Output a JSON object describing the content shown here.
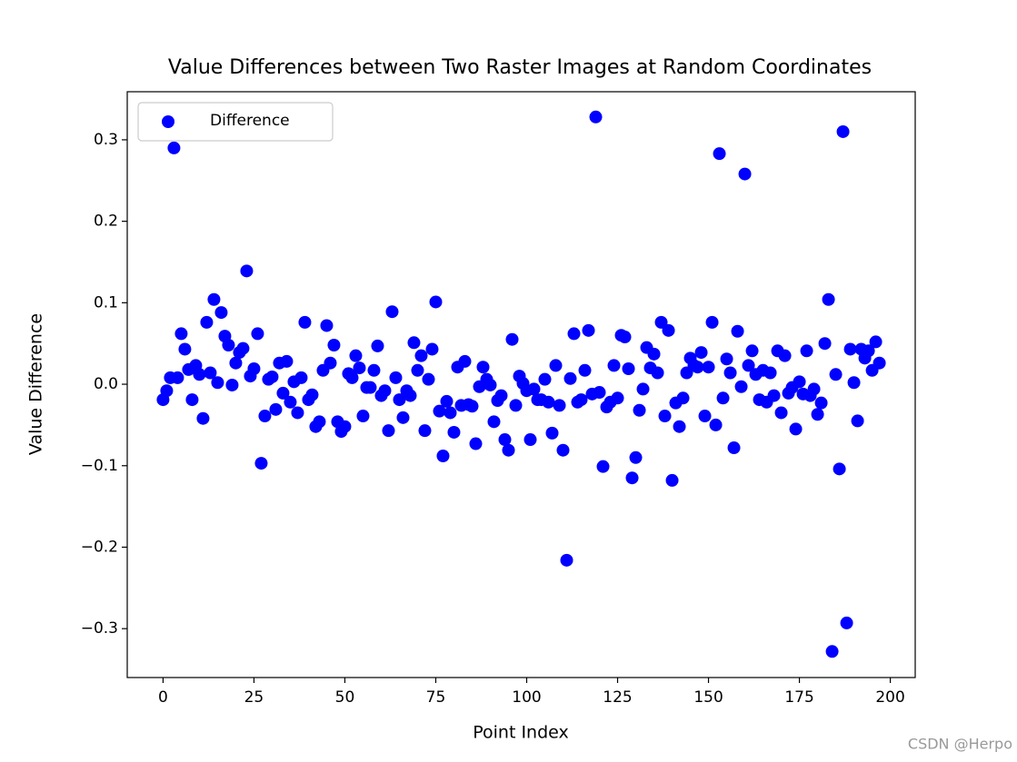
{
  "chart_data": {
    "type": "scatter",
    "title": "Value Differences between Two Raster Images at Random Coordinates",
    "xlabel": "Point Index",
    "ylabel": "Value Difference",
    "watermark": "CSDN @Herpo",
    "legend": "upper left",
    "xlim": [
      -9.85,
      206.85
    ],
    "ylim": [
      -0.36,
      0.359
    ],
    "xticks": [
      0,
      25,
      50,
      75,
      100,
      125,
      150,
      175,
      200
    ],
    "yticks": [
      {
        "value": -0.3,
        "label": "−0.3"
      },
      {
        "value": -0.2,
        "label": "−0.2"
      },
      {
        "value": -0.1,
        "label": "−0.1"
      },
      {
        "value": 0,
        "label": "0.0"
      },
      0.1,
      0.2,
      0.3
    ],
    "x": [
      0,
      1,
      2,
      3,
      4,
      5,
      6,
      7,
      8,
      9,
      10,
      11,
      12,
      13,
      14,
      15,
      16,
      17,
      18,
      19,
      20,
      21,
      22,
      23,
      24,
      25,
      26,
      27,
      28,
      29,
      30,
      31,
      32,
      33,
      34,
      35,
      36,
      37,
      38,
      39,
      40,
      41,
      42,
      43,
      44,
      45,
      46,
      47,
      48,
      49,
      50,
      51,
      52,
      53,
      54,
      55,
      56,
      57,
      58,
      59,
      60,
      61,
      62,
      63,
      64,
      65,
      66,
      67,
      68,
      69,
      70,
      71,
      72,
      73,
      74,
      75,
      76,
      77,
      78,
      79,
      80,
      81,
      82,
      83,
      84,
      85,
      86,
      87,
      88,
      89,
      90,
      91,
      92,
      93,
      94,
      95,
      96,
      97,
      98,
      99,
      100,
      101,
      102,
      103,
      104,
      105,
      106,
      107,
      108,
      109,
      110,
      111,
      112,
      113,
      114,
      115,
      116,
      117,
      118,
      119,
      120,
      121,
      122,
      123,
      124,
      125,
      126,
      127,
      128,
      129,
      130,
      131,
      132,
      133,
      134,
      135,
      136,
      137,
      138,
      139,
      140,
      141,
      142,
      143,
      144,
      145,
      146,
      147,
      148,
      149,
      150,
      151,
      152,
      153,
      154,
      155,
      156,
      157,
      158,
      159,
      160,
      161,
      162,
      163,
      164,
      165,
      166,
      167,
      168,
      169,
      170,
      171,
      172,
      173,
      174,
      175,
      176,
      177,
      178,
      179,
      180,
      181,
      182,
      183,
      184,
      185,
      186,
      187,
      188,
      189,
      190,
      191,
      192,
      193,
      194,
      195,
      196,
      197
    ],
    "series": [
      {
        "name": "Difference",
        "color": "blue",
        "values": [
          -0.019,
          -0.008,
          0.008,
          0.29,
          0.008,
          0.062,
          0.043,
          0.018,
          -0.019,
          0.023,
          0.012,
          -0.042,
          0.076,
          0.014,
          0.104,
          0.002,
          0.088,
          0.059,
          0.048,
          -0.001,
          0.026,
          0.039,
          0.044,
          0.139,
          0.01,
          0.019,
          0.062,
          -0.097,
          -0.039,
          0.006,
          0.009,
          -0.031,
          0.026,
          -0.011,
          0.028,
          -0.022,
          0.003,
          -0.035,
          0.008,
          0.076,
          -0.019,
          -0.013,
          -0.052,
          -0.046,
          0.017,
          0.072,
          0.026,
          0.048,
          -0.046,
          -0.058,
          -0.052,
          0.013,
          0.008,
          0.035,
          0.02,
          -0.039,
          -0.004,
          -0.004,
          0.017,
          0.047,
          -0.014,
          -0.008,
          -0.057,
          0.089,
          0.008,
          -0.019,
          -0.041,
          -0.008,
          -0.014,
          0.051,
          0.017,
          0.035,
          -0.057,
          0.006,
          0.043,
          0.101,
          -0.033,
          -0.088,
          -0.021,
          -0.035,
          -0.059,
          0.021,
          -0.026,
          0.028,
          -0.025,
          -0.027,
          -0.073,
          -0.003,
          0.021,
          0.006,
          -0.001,
          -0.046,
          -0.02,
          -0.014,
          -0.068,
          -0.081,
          0.055,
          -0.026,
          0.01,
          0.001,
          -0.008,
          -0.068,
          -0.006,
          -0.019,
          -0.019,
          0.006,
          -0.022,
          -0.06,
          0.023,
          -0.026,
          -0.081,
          -0.216,
          0.007,
          0.062,
          -0.022,
          -0.019,
          0.017,
          0.066,
          -0.012,
          0.328,
          -0.01,
          -0.101,
          -0.028,
          -0.022,
          0.023,
          -0.017,
          0.06,
          0.058,
          0.019,
          -0.115,
          -0.09,
          -0.032,
          -0.006,
          0.045,
          0.02,
          0.037,
          0.014,
          0.076,
          -0.039,
          0.066,
          -0.118,
          -0.023,
          -0.052,
          -0.017,
          0.014,
          0.032,
          0.023,
          0.021,
          0.039,
          -0.039,
          0.021,
          0.076,
          -0.05,
          0.283,
          -0.017,
          0.031,
          0.014,
          -0.078,
          0.065,
          -0.003,
          0.258,
          0.023,
          0.041,
          0.012,
          -0.019,
          0.017,
          -0.022,
          0.014,
          -0.014,
          0.041,
          -0.035,
          0.035,
          -0.011,
          -0.004,
          -0.055,
          0.003,
          -0.012,
          0.041,
          -0.014,
          -0.006,
          -0.037,
          -0.023,
          0.05,
          0.104,
          -0.328,
          0.012,
          -0.104,
          0.31,
          -0.293,
          0.043,
          0.002,
          -0.045,
          0.043,
          0.032,
          0.041,
          0.017,
          0.052,
          0.026
        ]
      }
    ]
  }
}
